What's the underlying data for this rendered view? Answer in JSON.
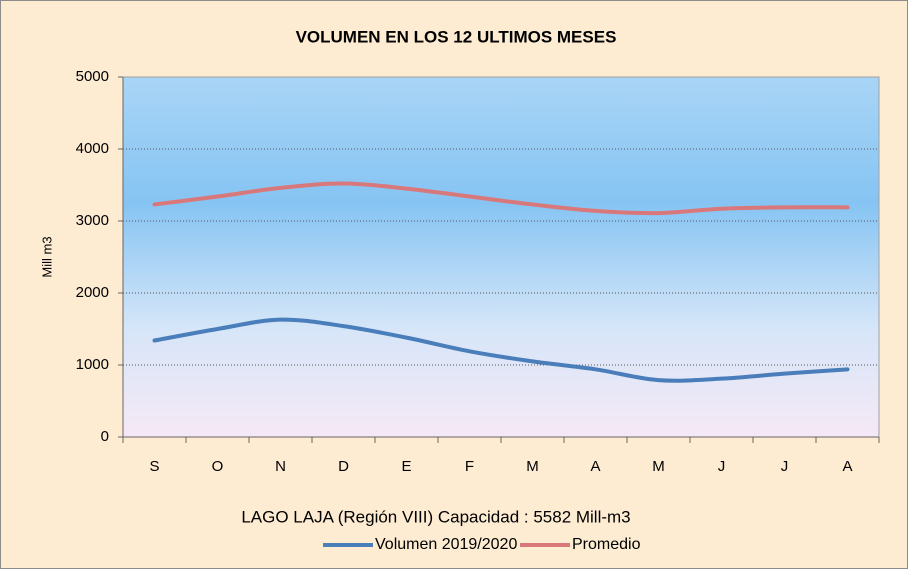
{
  "chart_data": {
    "type": "line",
    "title": "VOLUMEN EN LOS 12 ULTIMOS MESES",
    "y_label": "Mill m3",
    "annotation": "LAGO LAJA (Región VIII) Capacidad : 5582 Mill-m3",
    "categories": [
      "S",
      "O",
      "N",
      "D",
      "E",
      "F",
      "M",
      "A",
      "M",
      "J",
      "J",
      "A"
    ],
    "series": [
      {
        "name": "Volumen 2019/2020",
        "color": "#4a7ebb",
        "values": [
          1340,
          1500,
          1630,
          1540,
          1380,
          1190,
          1050,
          940,
          790,
          810,
          880,
          940
        ]
      },
      {
        "name": "Promedio",
        "color": "#d9787a",
        "values": [
          3230,
          3340,
          3460,
          3520,
          3450,
          3340,
          3230,
          3140,
          3110,
          3170,
          3190,
          3190
        ]
      }
    ],
    "ylim": [
      0,
      5000
    ],
    "yticks": [
      0,
      1000,
      2000,
      3000,
      4000,
      5000
    ],
    "grid": true,
    "legend": "bottom"
  }
}
